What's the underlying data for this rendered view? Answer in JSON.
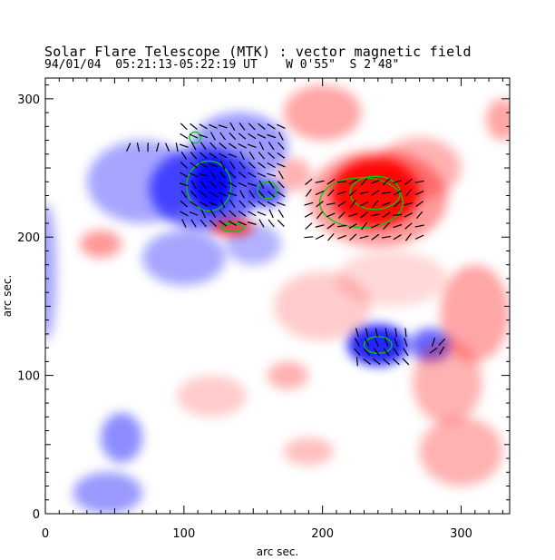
{
  "header": {
    "title": "Solar Flare Telescope (MTK) : vector magnetic field",
    "subtitle": "94/01/04  05:21:13-05:22:19 UT    W 0'55\"  S 2'48\""
  },
  "chart_data": {
    "type": "heatmap",
    "xlabel": "arc sec.",
    "ylabel": "arc sec.",
    "xlim": [
      0,
      335
    ],
    "ylim": [
      0,
      315
    ],
    "x_ticks": [
      "0",
      "100",
      "200",
      "300"
    ],
    "y_ticks": [
      "0",
      "100",
      "200",
      "300"
    ],
    "grid": false,
    "colors": {
      "positive_polarity": "#ff0000",
      "negative_polarity": "#0000ff",
      "contour": "#00cc00",
      "vectors": "#000000"
    },
    "regions": [
      {
        "polarity": "negative",
        "x": 115,
        "y": 235,
        "rx": 40,
        "ry": 30,
        "strength": 0.6
      },
      {
        "polarity": "negative",
        "x": 70,
        "y": 240,
        "rx": 40,
        "ry": 30,
        "strength": 0.35
      },
      {
        "polarity": "negative",
        "x": 140,
        "y": 265,
        "rx": 35,
        "ry": 25,
        "strength": 0.4
      },
      {
        "polarity": "negative",
        "x": 160,
        "y": 232,
        "rx": 12,
        "ry": 10,
        "strength": 0.7
      },
      {
        "polarity": "negative",
        "x": 120,
        "y": 238,
        "rx": 15,
        "ry": 20,
        "strength": 0.95
      },
      {
        "polarity": "negative",
        "x": 100,
        "y": 185,
        "rx": 30,
        "ry": 20,
        "strength": 0.35
      },
      {
        "polarity": "negative",
        "x": 150,
        "y": 195,
        "rx": 20,
        "ry": 15,
        "strength": 0.3
      },
      {
        "polarity": "negative",
        "x": 240,
        "y": 122,
        "rx": 22,
        "ry": 15,
        "strength": 0.85
      },
      {
        "polarity": "negative",
        "x": 278,
        "y": 122,
        "rx": 15,
        "ry": 12,
        "strength": 0.6
      },
      {
        "polarity": "negative",
        "x": 55,
        "y": 55,
        "rx": 15,
        "ry": 18,
        "strength": 0.45
      },
      {
        "polarity": "negative",
        "x": 45,
        "y": 15,
        "rx": 25,
        "ry": 15,
        "strength": 0.4
      },
      {
        "polarity": "negative",
        "x": 0,
        "y": 175,
        "rx": 8,
        "ry": 50,
        "strength": 0.35
      },
      {
        "polarity": "positive",
        "x": 238,
        "y": 232,
        "rx": 32,
        "ry": 25,
        "strength": 0.95
      },
      {
        "polarity": "positive",
        "x": 240,
        "y": 228,
        "rx": 50,
        "ry": 35,
        "strength": 0.4
      },
      {
        "polarity": "positive",
        "x": 200,
        "y": 290,
        "rx": 28,
        "ry": 20,
        "strength": 0.35
      },
      {
        "polarity": "positive",
        "x": 270,
        "y": 250,
        "rx": 30,
        "ry": 22,
        "strength": 0.3
      },
      {
        "polarity": "positive",
        "x": 310,
        "y": 145,
        "rx": 25,
        "ry": 35,
        "strength": 0.35
      },
      {
        "polarity": "positive",
        "x": 40,
        "y": 195,
        "rx": 15,
        "ry": 10,
        "strength": 0.4
      },
      {
        "polarity": "positive",
        "x": 135,
        "y": 207,
        "rx": 15,
        "ry": 6,
        "strength": 0.75
      },
      {
        "polarity": "positive",
        "x": 180,
        "y": 245,
        "rx": 12,
        "ry": 12,
        "strength": 0.3
      },
      {
        "polarity": "positive",
        "x": 290,
        "y": 95,
        "rx": 25,
        "ry": 30,
        "strength": 0.3
      },
      {
        "polarity": "positive",
        "x": 300,
        "y": 45,
        "rx": 30,
        "ry": 25,
        "strength": 0.3
      },
      {
        "polarity": "positive",
        "x": 200,
        "y": 150,
        "rx": 35,
        "ry": 25,
        "strength": 0.2
      },
      {
        "polarity": "positive",
        "x": 175,
        "y": 100,
        "rx": 15,
        "ry": 10,
        "strength": 0.3
      },
      {
        "polarity": "positive",
        "x": 190,
        "y": 45,
        "rx": 18,
        "ry": 10,
        "strength": 0.25
      },
      {
        "polarity": "positive",
        "x": 120,
        "y": 85,
        "rx": 25,
        "ry": 15,
        "strength": 0.2
      },
      {
        "polarity": "positive",
        "x": 330,
        "y": 285,
        "rx": 12,
        "ry": 15,
        "strength": 0.35
      },
      {
        "polarity": "positive",
        "x": 250,
        "y": 170,
        "rx": 40,
        "ry": 20,
        "strength": 0.15
      }
    ],
    "contours": [
      {
        "x": 118,
        "y": 237,
        "rx": 16,
        "ry": 18
      },
      {
        "x": 160,
        "y": 234,
        "rx": 7,
        "ry": 6
      },
      {
        "x": 108,
        "y": 272,
        "rx": 4,
        "ry": 4
      },
      {
        "x": 238,
        "y": 232,
        "rx": 18,
        "ry": 12
      },
      {
        "x": 228,
        "y": 225,
        "rx": 30,
        "ry": 18
      },
      {
        "x": 240,
        "y": 122,
        "rx": 10,
        "ry": 6
      },
      {
        "x": 135,
        "y": 207,
        "rx": 8,
        "ry": 3
      }
    ],
    "vector_fields": [
      {
        "x0": 100,
        "x1": 175,
        "y0": 210,
        "y1": 280,
        "step": 7,
        "angle": 140
      },
      {
        "x0": 190,
        "x1": 272,
        "y0": 200,
        "y1": 245,
        "step": 8,
        "angle": 30
      },
      {
        "x0": 225,
        "x1": 260,
        "y0": 110,
        "y1": 135,
        "step": 7,
        "angle": 120
      },
      {
        "x0": 280,
        "x1": 290,
        "y0": 118,
        "y1": 125,
        "step": 6,
        "angle": 60
      },
      {
        "x0": 60,
        "x1": 95,
        "y0": 265,
        "y1": 270,
        "step": 7,
        "angle": 90
      }
    ]
  }
}
